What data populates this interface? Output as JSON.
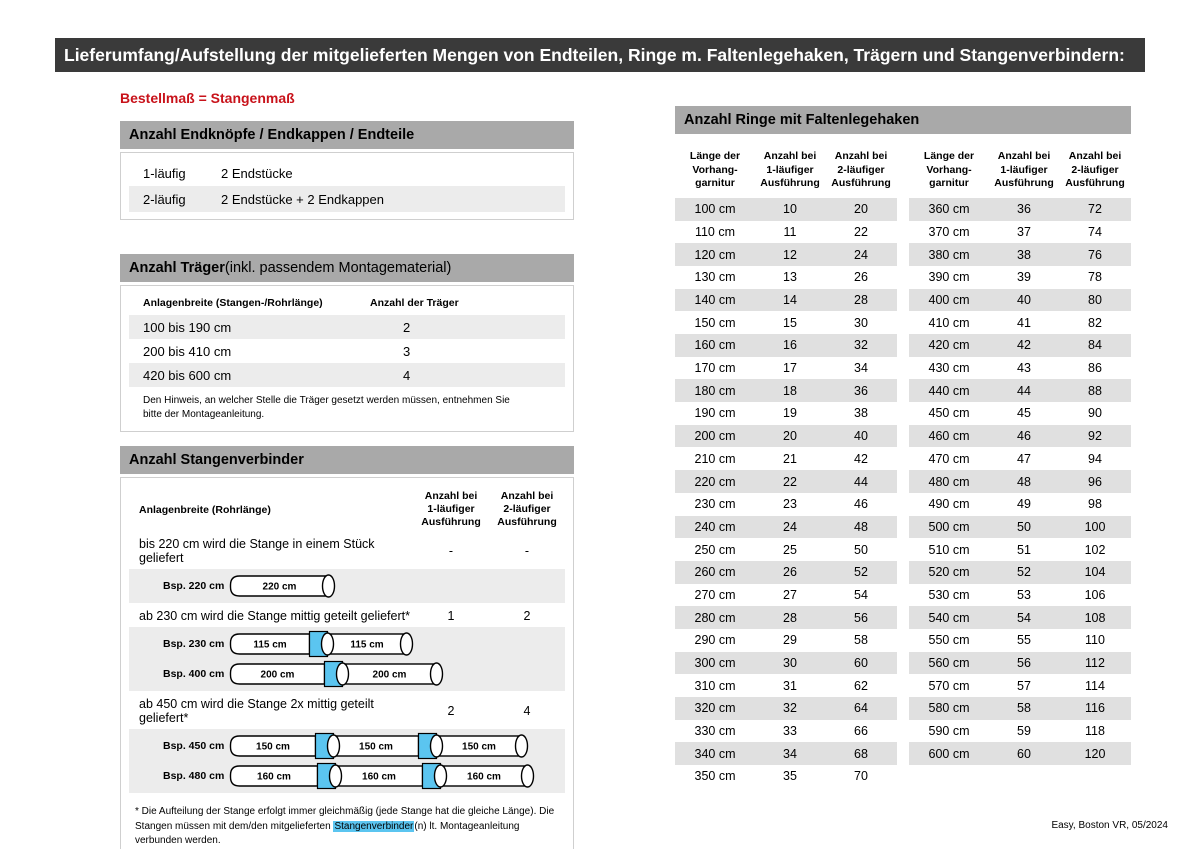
{
  "colors": {
    "red": "#c8121a",
    "blue": "#5bc5f0",
    "bar_dark": "#3a3a3a",
    "bar_gray": "#a9a9a9",
    "row_shade": "#ececec"
  },
  "page": {
    "title": "Lieferumfang/Aufstellung der mitgelieferten Mengen von Endteilen, Ringe m. Faltenlegehaken, Trägern und Stangenverbindern:",
    "note_red": "Bestellmaß = Stangenmaß",
    "footer": "Easy, Boston VR, 05/2024"
  },
  "endteile": {
    "header": "Anzahl Endknöpfe / Endkappen / Endteile",
    "rows": [
      {
        "label": "1-läufig",
        "value": "2 Endstücke"
      },
      {
        "label": "2-läufig",
        "value": "2 Endstücke + 2 Endkappen"
      }
    ]
  },
  "traeger": {
    "header_bold": "Anzahl Träger",
    "header_rest": " (inkl. passendem Montagematerial)",
    "col1": "Anlagenbreite (Stangen-/Rohrlänge)",
    "col2": "Anzahl der Träger",
    "rows": [
      {
        "range": "100 bis 190 cm",
        "count": "2"
      },
      {
        "range": "200 bis 410 cm",
        "count": "3"
      },
      {
        "range": "420 bis 600 cm",
        "count": "4"
      }
    ],
    "note": "Den Hinweis, an welcher Stelle die Träger gesetzt werden müssen, entnehmen Sie bitte der Montageanleitung."
  },
  "verbinder": {
    "header": "Anzahl Stangenverbinder",
    "col_label": "Anlagenbreite (Rohrlänge)",
    "col1": "Anzahl bei\n1-läufiger\nAusführung",
    "col2": "Anzahl bei\n2-läufiger\nAusführung",
    "groups": [
      {
        "text": "bis 220 cm wird die Stange in einem Stück geliefert",
        "count1": "-",
        "count2": "-",
        "examples": [
          {
            "label": "Bsp. 220 cm",
            "segments": [
              "220 cm"
            ]
          }
        ]
      },
      {
        "text": "ab 230 cm wird die Stange mittig geteilt geliefert*",
        "count1": "1",
        "count2": "2",
        "examples": [
          {
            "label": "Bsp. 230 cm",
            "segments": [
              "115 cm",
              "115 cm"
            ]
          },
          {
            "label": "Bsp. 400 cm",
            "segments": [
              "200 cm",
              "200 cm"
            ]
          }
        ]
      },
      {
        "text": "ab 450 cm wird die Stange 2x mittig geteilt geliefert*",
        "count1": "2",
        "count2": "4",
        "examples": [
          {
            "label": "Bsp. 450 cm",
            "segments": [
              "150 cm",
              "150 cm",
              "150 cm"
            ]
          },
          {
            "label": "Bsp. 480 cm",
            "segments": [
              "160 cm",
              "160 cm",
              "160 cm"
            ]
          }
        ]
      }
    ],
    "footnote_pre": "* Die Aufteilung der Stange erfolgt immer gleichmäßig (jede Stange hat die gleiche Länge). Die Stangen müssen mit dem/den mitgelieferten ",
    "footnote_highlight": "Stangenverbinder",
    "footnote_post": "(n) lt. Montageanleitung verbunden werden."
  },
  "ringe": {
    "header": "Anzahl Ringe mit Faltenlegehaken",
    "cols": [
      "Länge der\nVorhang-\ngarnitur",
      "Anzahl bei\n1-läufiger\nAusführung",
      "Anzahl bei\n2-läufiger\nAusführung"
    ],
    "table1": [
      [
        "100 cm",
        "10",
        "20"
      ],
      [
        "110 cm",
        "11",
        "22"
      ],
      [
        "120 cm",
        "12",
        "24"
      ],
      [
        "130 cm",
        "13",
        "26"
      ],
      [
        "140 cm",
        "14",
        "28"
      ],
      [
        "150 cm",
        "15",
        "30"
      ],
      [
        "160 cm",
        "16",
        "32"
      ],
      [
        "170 cm",
        "17",
        "34"
      ],
      [
        "180 cm",
        "18",
        "36"
      ],
      [
        "190 cm",
        "19",
        "38"
      ],
      [
        "200 cm",
        "20",
        "40"
      ],
      [
        "210 cm",
        "21",
        "42"
      ],
      [
        "220 cm",
        "22",
        "44"
      ],
      [
        "230 cm",
        "23",
        "46"
      ],
      [
        "240 cm",
        "24",
        "48"
      ],
      [
        "250 cm",
        "25",
        "50"
      ],
      [
        "260 cm",
        "26",
        "52"
      ],
      [
        "270 cm",
        "27",
        "54"
      ],
      [
        "280 cm",
        "28",
        "56"
      ],
      [
        "290 cm",
        "29",
        "58"
      ],
      [
        "300 cm",
        "30",
        "60"
      ],
      [
        "310 cm",
        "31",
        "62"
      ],
      [
        "320 cm",
        "32",
        "64"
      ],
      [
        "330 cm",
        "33",
        "66"
      ],
      [
        "340 cm",
        "34",
        "68"
      ],
      [
        "350 cm",
        "35",
        "70"
      ]
    ],
    "table2": [
      [
        "360 cm",
        "36",
        "72"
      ],
      [
        "370 cm",
        "37",
        "74"
      ],
      [
        "380 cm",
        "38",
        "76"
      ],
      [
        "390 cm",
        "39",
        "78"
      ],
      [
        "400 cm",
        "40",
        "80"
      ],
      [
        "410 cm",
        "41",
        "82"
      ],
      [
        "420 cm",
        "42",
        "84"
      ],
      [
        "430 cm",
        "43",
        "86"
      ],
      [
        "440 cm",
        "44",
        "88"
      ],
      [
        "450 cm",
        "45",
        "90"
      ],
      [
        "460 cm",
        "46",
        "92"
      ],
      [
        "470 cm",
        "47",
        "94"
      ],
      [
        "480 cm",
        "48",
        "96"
      ],
      [
        "490 cm",
        "49",
        "98"
      ],
      [
        "500 cm",
        "50",
        "100"
      ],
      [
        "510 cm",
        "51",
        "102"
      ],
      [
        "520 cm",
        "52",
        "104"
      ],
      [
        "530 cm",
        "53",
        "106"
      ],
      [
        "540 cm",
        "54",
        "108"
      ],
      [
        "550 cm",
        "55",
        "110"
      ],
      [
        "560 cm",
        "56",
        "112"
      ],
      [
        "570 cm",
        "57",
        "114"
      ],
      [
        "580 cm",
        "58",
        "116"
      ],
      [
        "590 cm",
        "59",
        "118"
      ],
      [
        "600 cm",
        "60",
        "120"
      ]
    ]
  }
}
